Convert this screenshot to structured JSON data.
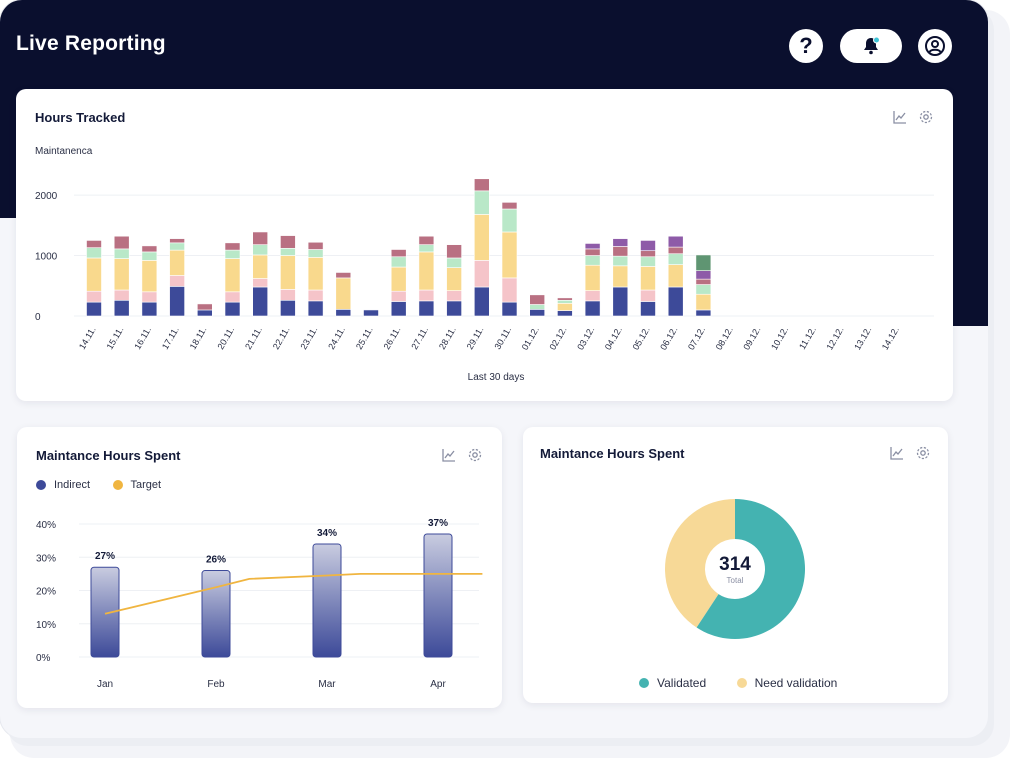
{
  "app": {
    "title": "Live Reporting"
  },
  "header": {
    "help_label": "?"
  },
  "colors": {
    "navy": "#0a0f2e",
    "indigo": "#3d4a99",
    "pink": "#f5c4c9",
    "yellow": "#f9d98d",
    "mint": "#b9e8c8",
    "rose": "#b97082",
    "purple": "#8e5ba8",
    "green": "#5f9572",
    "teal": "#44b3b1",
    "sand": "#f7d997",
    "target": "#f0b540"
  },
  "hours_card": {
    "title": "Hours Tracked",
    "subtitle": "Maintanenca",
    "xlabel": "Last 30 days",
    "icons": [
      "line-chart-icon",
      "gear-icon"
    ]
  },
  "split_card": {
    "title": "Maintance Hours Spent",
    "legend": [
      {
        "label": "Indirect",
        "color": "#3d4a99"
      },
      {
        "label": "Target",
        "color": "#f0b540"
      }
    ],
    "icons": [
      "line-chart-icon",
      "gear-icon"
    ]
  },
  "donut_card": {
    "title": "Maintance Hours Spent",
    "total_value": "314",
    "total_label": "Total",
    "legend": [
      {
        "label": "Validated",
        "color": "#44b3b1"
      },
      {
        "label": "Need validation",
        "color": "#f7d997"
      }
    ],
    "icons": [
      "line-chart-icon",
      "gear-icon"
    ]
  },
  "chart_data": [
    {
      "type": "bar",
      "title": "Hours Tracked",
      "subtitle": "Maintanenca",
      "xlabel": "Last 30 days",
      "ylim": [
        0,
        2200
      ],
      "yticks": [
        0,
        1000,
        2000
      ],
      "ytick_labels": [
        "0",
        "1000",
        "2000"
      ],
      "grid": true,
      "categories": [
        "14.11.",
        "15.11.",
        "16.11.",
        "17.11.",
        "18.11.",
        "20.11.",
        "21.11.",
        "22.11.",
        "23.11.",
        "24.11.",
        "25.11.",
        "26.11.",
        "27.11.",
        "28.11.",
        "29.11.",
        "30.11.",
        "01.12.",
        "02.12.",
        "03.12.",
        "04.12.",
        "05.12.",
        "06.12.",
        "07.12.",
        "08.12.",
        "09.12.",
        "10.12.",
        "11.12.",
        "12.12.",
        "13.12.",
        "14.12."
      ],
      "series": [
        {
          "color": "#3d4a99",
          "values": [
            230,
            260,
            230,
            490,
            100,
            230,
            480,
            260,
            250,
            110,
            100,
            240,
            250,
            250,
            480,
            230,
            110,
            90,
            250,
            480,
            240,
            480,
            100,
            0,
            0,
            0,
            0,
            0,
            0,
            0
          ]
        },
        {
          "color": "#f5c4c9",
          "values": [
            180,
            170,
            170,
            180,
            0,
            170,
            140,
            180,
            180,
            0,
            0,
            170,
            180,
            170,
            440,
            400,
            0,
            0,
            170,
            0,
            190,
            0,
            0,
            0,
            0,
            0,
            0,
            0,
            0,
            0
          ]
        },
        {
          "color": "#f9d98d",
          "values": [
            550,
            520,
            520,
            420,
            0,
            550,
            390,
            560,
            540,
            520,
            0,
            400,
            630,
            380,
            760,
            760,
            0,
            120,
            420,
            350,
            390,
            370,
            260,
            0,
            0,
            0,
            0,
            0,
            0,
            0
          ]
        },
        {
          "color": "#b9e8c8",
          "values": [
            170,
            160,
            140,
            120,
            0,
            140,
            170,
            120,
            130,
            0,
            0,
            170,
            120,
            160,
            390,
            380,
            80,
            50,
            160,
            160,
            160,
            180,
            160,
            0,
            0,
            0,
            0,
            0,
            0,
            0
          ]
        },
        {
          "color": "#b97082",
          "values": [
            120,
            210,
            100,
            70,
            100,
            120,
            210,
            210,
            120,
            90,
            0,
            120,
            140,
            220,
            200,
            110,
            160,
            40,
            110,
            160,
            100,
            110,
            90,
            0,
            0,
            0,
            0,
            0,
            0,
            0
          ]
        },
        {
          "color": "#8e5ba8",
          "values": [
            0,
            0,
            0,
            0,
            0,
            0,
            0,
            0,
            0,
            0,
            0,
            0,
            0,
            0,
            0,
            0,
            0,
            0,
            90,
            130,
            170,
            180,
            140,
            0,
            0,
            0,
            0,
            0,
            0,
            0
          ]
        },
        {
          "color": "#5f9572",
          "values": [
            0,
            0,
            0,
            0,
            0,
            0,
            0,
            0,
            0,
            0,
            0,
            0,
            0,
            0,
            0,
            0,
            0,
            0,
            0,
            0,
            0,
            0,
            260,
            0,
            0,
            0,
            0,
            0,
            0,
            0
          ]
        }
      ]
    },
    {
      "type": "bar",
      "title": "Maintance Hours Spent",
      "categories": [
        "Jan",
        "Feb",
        "Mar",
        "Apr"
      ],
      "ylim": [
        0,
        40
      ],
      "ytick_labels": [
        "0%",
        "10%",
        "20%",
        "30%",
        "40%"
      ],
      "series": [
        {
          "name": "Indirect",
          "values": [
            27,
            26,
            34,
            37
          ],
          "labels": [
            "27%",
            "26%",
            "34%",
            "37%"
          ]
        },
        {
          "name": "Target",
          "type": "line",
          "x": [
            0,
            1,
            1.3,
            2,
            2.3,
            3,
            3.4
          ],
          "values": [
            13,
            21,
            23.5,
            24.5,
            25,
            25,
            25
          ]
        }
      ]
    },
    {
      "type": "pie",
      "title": "Maintance Hours Spent",
      "total": 314,
      "slices": [
        {
          "label": "Validated",
          "value": 186,
          "color": "#44b3b1"
        },
        {
          "label": "Need validation",
          "value": 128,
          "color": "#f7d997"
        }
      ]
    }
  ]
}
